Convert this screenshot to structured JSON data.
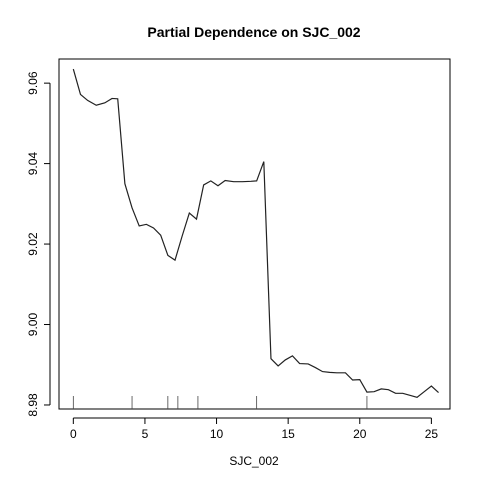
{
  "chart_data": {
    "type": "line",
    "title": "Partial Dependence on SJC_002",
    "xlabel": "SJC_002",
    "ylabel": "",
    "xlim": [
      -1,
      26.3
    ],
    "ylim": [
      8.979,
      9.066
    ],
    "x_ticks": [
      0,
      5,
      10,
      15,
      20,
      25
    ],
    "y_ticks": [
      8.98,
      9.0,
      9.02,
      9.04,
      9.06
    ],
    "x_tick_labels": [
      "0",
      "5",
      "10",
      "15",
      "20",
      "25"
    ],
    "y_tick_labels": [
      "8.98",
      "9.00",
      "9.02",
      "9.04",
      "9.06"
    ],
    "grid": false,
    "series": [
      {
        "name": "",
        "x": [
          0,
          0.5,
          1,
          1.6,
          2.2,
          2.7,
          3.1,
          3.6,
          4.1,
          4.6,
          5.1,
          5.6,
          6.1,
          6.6,
          7.1,
          7.6,
          8.1,
          8.6,
          9.1,
          9.6,
          10.1,
          10.6,
          11.2,
          11.8,
          12.4,
          12.8,
          13.3,
          13.8,
          14.3,
          14.8,
          15.3,
          15.8,
          16.4,
          16.9,
          17.4,
          17.9,
          18.4,
          19.0,
          19.5,
          20.0,
          20.5,
          21.0,
          21.5,
          22.0,
          22.5,
          23.0,
          23.5,
          24.0,
          24.5,
          25.0,
          25.5
        ],
        "values": [
          9.0635,
          9.0572,
          9.0557,
          9.0545,
          9.0551,
          9.0562,
          9.0561,
          9.035,
          9.029,
          9.0245,
          9.0249,
          9.024,
          9.0222,
          9.0172,
          9.016,
          9.022,
          9.0277,
          9.0262,
          9.0347,
          9.0357,
          9.0345,
          9.0358,
          9.0355,
          9.0355,
          9.0356,
          9.0357,
          9.0405,
          8.9915,
          8.9897,
          8.9912,
          8.9922,
          8.9903,
          8.9902,
          8.9893,
          8.9883,
          8.9881,
          8.988,
          8.988,
          8.9862,
          8.9863,
          8.9832,
          8.9833,
          8.984,
          8.9838,
          8.9829,
          8.9829,
          8.9824,
          8.9819,
          8.9833,
          8.9847,
          8.9831
        ]
      }
    ],
    "rug_x": [
      0,
      4.1,
      6.6,
      7.3,
      8.7,
      12.8,
      20.5
    ]
  }
}
